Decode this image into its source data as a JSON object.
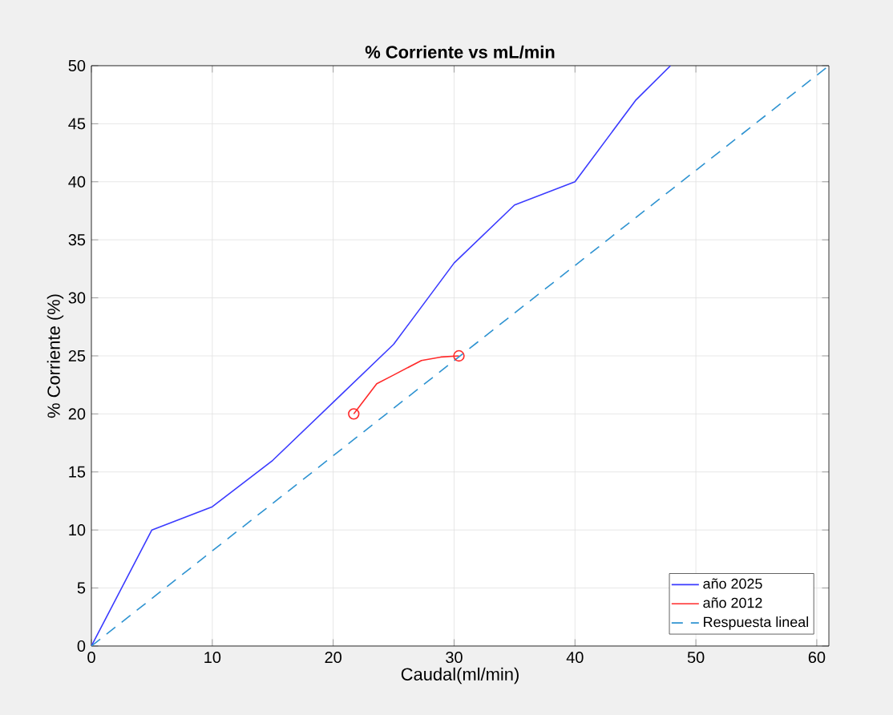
{
  "chart_data": {
    "type": "line",
    "title": "% Corriente vs mL/min",
    "xlabel": "Caudal(ml/min)",
    "ylabel": "% Corriente (%)",
    "xlim": [
      0,
      61
    ],
    "ylim": [
      0,
      50
    ],
    "xticks": [
      0,
      10,
      20,
      30,
      40,
      50,
      60
    ],
    "yticks": [
      0,
      5,
      10,
      15,
      20,
      25,
      30,
      35,
      40,
      45,
      50
    ],
    "grid": true,
    "legend": "bottom right",
    "series": [
      {
        "name": "año 2025",
        "color": "#3b3bff",
        "x": [
          0,
          5,
          10,
          15,
          20,
          25,
          30,
          35,
          40,
          45,
          47.9
        ],
        "values": [
          0,
          10,
          12,
          16,
          21,
          26,
          33,
          38,
          40,
          47,
          50
        ]
      },
      {
        "name": "año 2012",
        "color": "#ff2a2a",
        "x": [
          21.7,
          23.6,
          24.9,
          27.3,
          28.9,
          30.4
        ],
        "values": [
          20,
          22.6,
          23.3,
          24.6,
          24.9,
          25
        ]
      },
      {
        "type": "scatter",
        "marker": "circle",
        "color": "#ff2a2a",
        "x": [
          21.7,
          30.4
        ],
        "values": [
          20,
          25
        ]
      },
      {
        "name": "Respuesta lineal",
        "color": "#2e93d1",
        "line_style": "dashed",
        "x": [
          0,
          61
        ],
        "values": [
          0,
          50
        ]
      }
    ]
  }
}
